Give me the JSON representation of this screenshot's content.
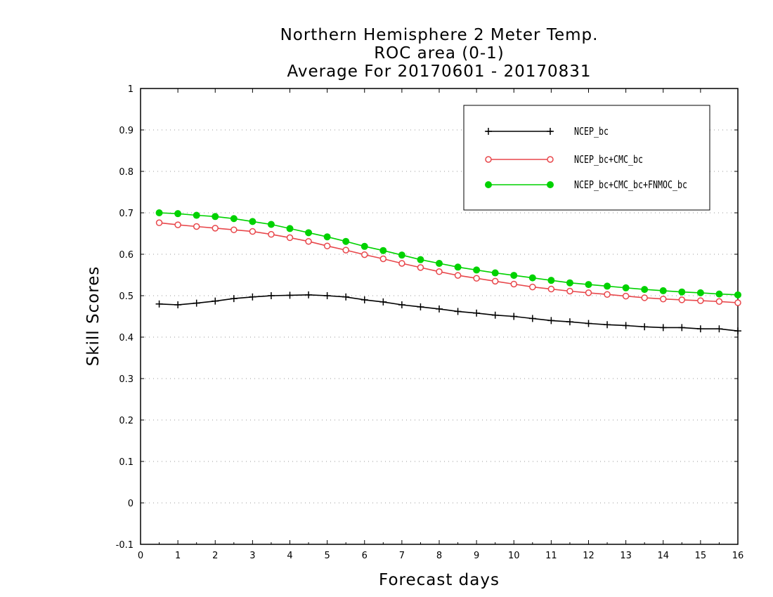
{
  "chart_data": {
    "type": "line",
    "title": [
      "Northern Hemisphere 2 Meter Temp.",
      "ROC area (0-1)",
      "Average For 20170601 - 20170831"
    ],
    "xlabel": "Forecast days",
    "ylabel": "Skill Scores",
    "xlim": [
      0,
      16
    ],
    "ylim": [
      -0.1,
      1
    ],
    "xticks": [
      0,
      1,
      2,
      3,
      4,
      5,
      6,
      7,
      8,
      9,
      10,
      11,
      12,
      13,
      14,
      15,
      16
    ],
    "yticks": [
      -0.1,
      0,
      0.1,
      0.2,
      0.3,
      0.4,
      0.5,
      0.6,
      0.7,
      0.8,
      0.9,
      1
    ],
    "ytick_labels": [
      "-0.1",
      "0",
      "0.1",
      "0.2",
      "0.3",
      "0.4",
      "0.5",
      "0.6",
      "0.7",
      "0.8",
      "0.9",
      "1"
    ],
    "grid": true,
    "legend_position": "top-right",
    "x": [
      0.5,
      1,
      1.5,
      2,
      2.5,
      3,
      3.5,
      4,
      4.5,
      5,
      5.5,
      6,
      6.5,
      7,
      7.5,
      8,
      8.5,
      9,
      9.5,
      10,
      10.5,
      11,
      11.5,
      12,
      12.5,
      13,
      13.5,
      14,
      14.5,
      15,
      15.5,
      16
    ],
    "series": [
      {
        "name": "NCEP_bc",
        "color": "#000000",
        "marker": "plus",
        "values": [
          0.48,
          0.478,
          0.482,
          0.487,
          0.493,
          0.497,
          0.5,
          0.501,
          0.502,
          0.5,
          0.497,
          0.49,
          0.485,
          0.478,
          0.473,
          0.468,
          0.462,
          0.458,
          0.453,
          0.45,
          0.445,
          0.44,
          0.437,
          0.433,
          0.43,
          0.428,
          0.425,
          0.423,
          0.423,
          0.42,
          0.42,
          0.415
        ]
      },
      {
        "name": "NCEP_bc+CMC_bc",
        "color": "#e8474b",
        "marker": "open-circle",
        "values": [
          0.676,
          0.671,
          0.667,
          0.663,
          0.659,
          0.655,
          0.648,
          0.64,
          0.631,
          0.62,
          0.61,
          0.599,
          0.589,
          0.578,
          0.568,
          0.558,
          0.549,
          0.542,
          0.535,
          0.528,
          0.521,
          0.516,
          0.511,
          0.507,
          0.503,
          0.499,
          0.495,
          0.492,
          0.49,
          0.488,
          0.486,
          0.483
        ]
      },
      {
        "name": "NCEP_bc+CMC_bc+FNMOC_bc",
        "color": "#00d200",
        "marker": "filled-circle",
        "values": [
          0.7,
          0.698,
          0.694,
          0.691,
          0.686,
          0.679,
          0.672,
          0.662,
          0.652,
          0.642,
          0.631,
          0.619,
          0.609,
          0.598,
          0.587,
          0.578,
          0.569,
          0.562,
          0.555,
          0.549,
          0.543,
          0.537,
          0.531,
          0.527,
          0.523,
          0.519,
          0.515,
          0.512,
          0.509,
          0.507,
          0.504,
          0.502
        ]
      }
    ]
  }
}
